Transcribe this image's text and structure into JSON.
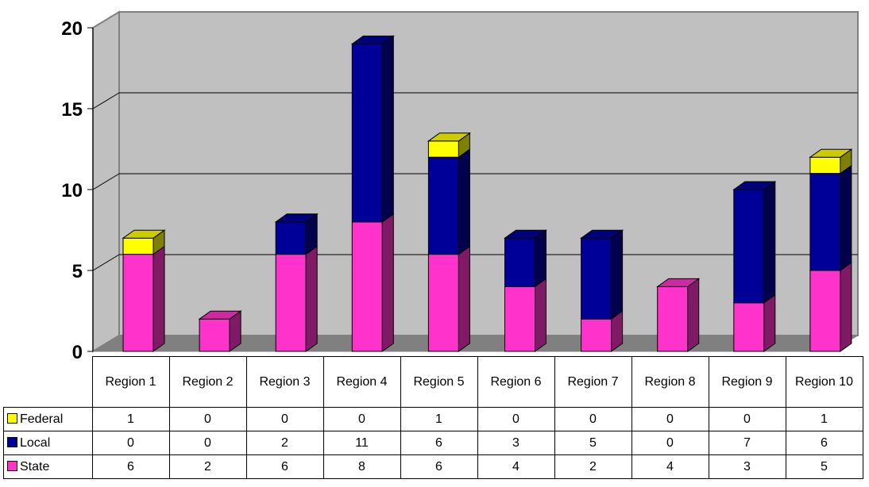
{
  "chart_data": {
    "type": "bar",
    "stacked": true,
    "style": "3d",
    "categories": [
      "Region 1",
      "Region 2",
      "Region 3",
      "Region 4",
      "Region 5",
      "Region 6",
      "Region 7",
      "Region 8",
      "Region 9",
      "Region 10"
    ],
    "series": [
      {
        "name": "State",
        "color": "#ff33cc",
        "values": [
          6,
          2,
          6,
          8,
          6,
          4,
          2,
          4,
          3,
          5
        ]
      },
      {
        "name": "Local",
        "color": "#000099",
        "values": [
          0,
          0,
          2,
          11,
          6,
          3,
          5,
          0,
          7,
          6
        ]
      },
      {
        "name": "Federal",
        "color": "#ffff00",
        "values": [
          1,
          0,
          0,
          0,
          1,
          0,
          0,
          0,
          0,
          1
        ]
      }
    ],
    "table_row_order": [
      "Federal",
      "Local",
      "State"
    ],
    "yticks": [
      0,
      5,
      10,
      15,
      20
    ],
    "ylim": [
      0,
      20
    ],
    "grid": true,
    "legend": "data-table",
    "title": "",
    "xlabel": "",
    "ylabel": ""
  }
}
